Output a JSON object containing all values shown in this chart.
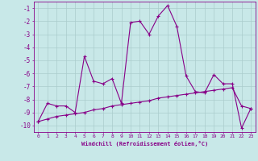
{
  "xlabel": "Windchill (Refroidissement éolien,°C)",
  "hours": [
    0,
    1,
    2,
    3,
    4,
    5,
    6,
    7,
    8,
    9,
    10,
    11,
    12,
    13,
    14,
    15,
    16,
    17,
    18,
    19,
    20,
    21,
    22,
    23
  ],
  "windchill": [
    -9.7,
    -8.3,
    -8.5,
    -8.5,
    -9.0,
    -4.7,
    -6.6,
    -6.8,
    -6.4,
    -8.3,
    -2.1,
    -2.0,
    -3.0,
    -1.6,
    -0.8,
    -2.4,
    -6.2,
    -7.4,
    -7.5,
    -6.1,
    -6.8,
    -6.8,
    -10.2,
    -8.7
  ],
  "temperature": [
    -9.7,
    -9.5,
    -9.3,
    -9.2,
    -9.1,
    -9.0,
    -8.8,
    -8.7,
    -8.5,
    -8.4,
    -8.3,
    -8.2,
    -8.1,
    -7.9,
    -7.8,
    -7.7,
    -7.6,
    -7.5,
    -7.4,
    -7.3,
    -7.2,
    -7.1,
    -8.5,
    -8.7
  ],
  "line_color": "#880088",
  "bg_color": "#c8e8e8",
  "grid_color": "#aacccc",
  "text_color": "#880088",
  "ylim": [
    -10.5,
    -0.5
  ],
  "xlim": [
    -0.5,
    23.5
  ],
  "yticks": [
    -1,
    -2,
    -3,
    -4,
    -5,
    -6,
    -7,
    -8,
    -9,
    -10
  ],
  "ytick_labels": [
    "-1",
    "-2",
    "-3",
    "-4",
    "-5",
    "-6",
    "-7",
    "-8",
    "-9",
    "-10"
  ]
}
